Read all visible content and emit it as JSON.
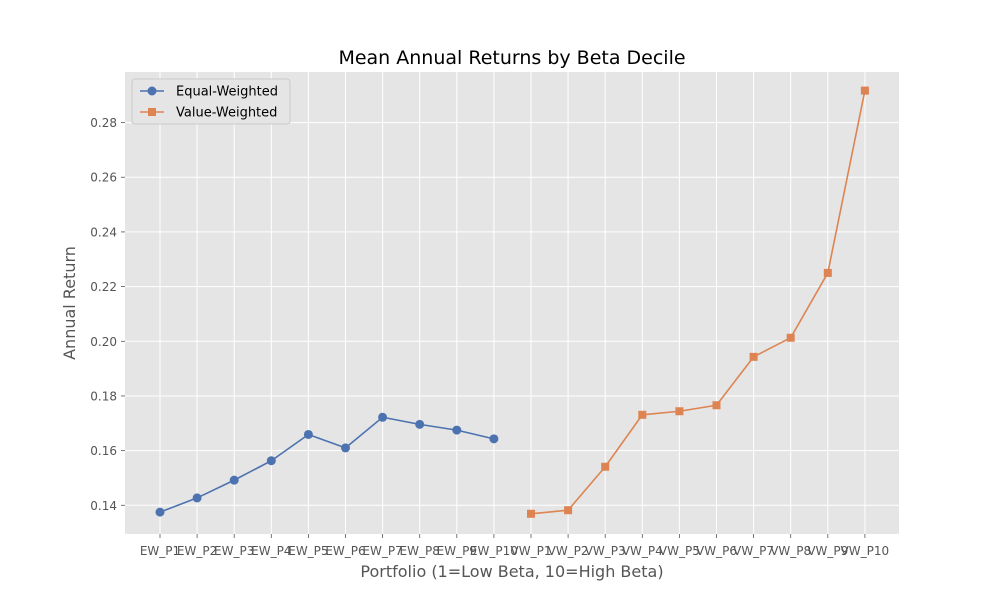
{
  "chart_data": {
    "type": "line",
    "title": "Mean Annual Returns by Beta Decile",
    "xlabel": "Portfolio (1=Low Beta, 10=High Beta)",
    "ylabel": "Annual Return",
    "ylim": [
      0.1295,
      0.2985
    ],
    "yticks": [
      0.14,
      0.16,
      0.18,
      0.2,
      0.22,
      0.24,
      0.26,
      0.28
    ],
    "ytick_labels": [
      "0.14",
      "0.16",
      "0.18",
      "0.20",
      "0.22",
      "0.24",
      "0.26",
      "0.28"
    ],
    "categories": [
      "EW_P1",
      "EW_P2",
      "EW_P3",
      "EW_P4",
      "EW_P5",
      "EW_P6",
      "EW_P7",
      "EW_P8",
      "EW_P9",
      "EW_P10",
      "VW_P1",
      "VW_P2",
      "VW_P3",
      "VW_P4",
      "VW_P5",
      "VW_P6",
      "VW_P7",
      "VW_P8",
      "VW_P9",
      "VW_P10"
    ],
    "grid": true,
    "legend_position": "top-left",
    "series": [
      {
        "name": "Equal-Weighted",
        "color": "#4c72b0",
        "marker": "circle",
        "x": [
          "EW_P1",
          "EW_P2",
          "EW_P3",
          "EW_P4",
          "EW_P5",
          "EW_P6",
          "EW_P7",
          "EW_P8",
          "EW_P9",
          "EW_P10"
        ],
        "values": [
          0.1375,
          0.1427,
          0.1492,
          0.1563,
          0.1659,
          0.161,
          0.1722,
          0.1696,
          0.1675,
          0.1643
        ]
      },
      {
        "name": "Value-Weighted",
        "color": "#dd8452",
        "marker": "square",
        "x": [
          "VW_P1",
          "VW_P2",
          "VW_P3",
          "VW_P4",
          "VW_P5",
          "VW_P6",
          "VW_P7",
          "VW_P8",
          "VW_P9",
          "VW_P10"
        ],
        "values": [
          0.1369,
          0.1382,
          0.1541,
          0.1731,
          0.1744,
          0.1766,
          0.1943,
          0.2013,
          0.225,
          0.2917
        ]
      }
    ]
  }
}
